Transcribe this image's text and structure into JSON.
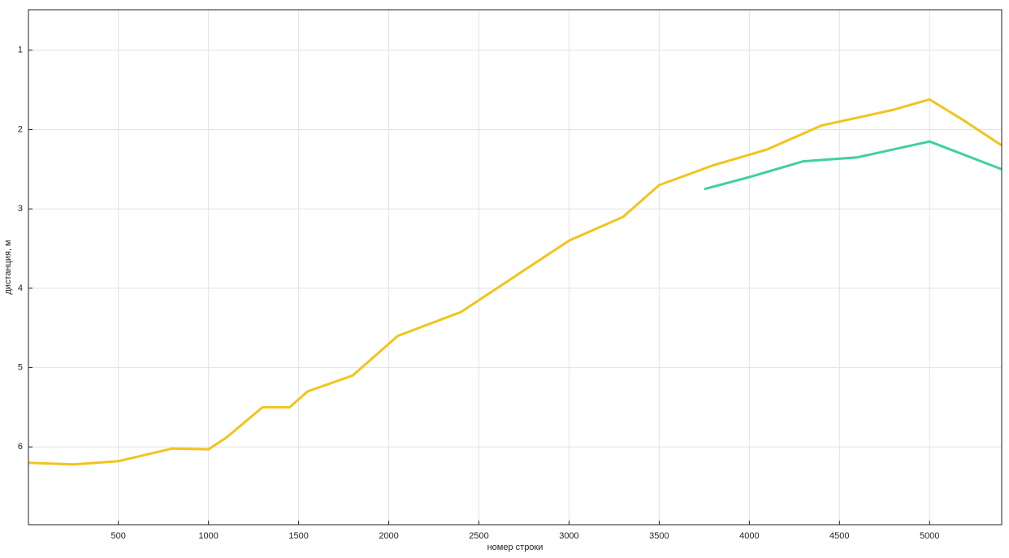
{
  "chart_data": {
    "type": "line",
    "xlabel": "номер строки",
    "ylabel": "дистанция, м",
    "xlim": [
      1,
      5400
    ],
    "xticks": [
      500,
      1000,
      1500,
      2000,
      2500,
      3000,
      3500,
      4000,
      4500,
      5000
    ],
    "ylim": [
      0.49,
      6.98
    ],
    "yticks": [
      1,
      2,
      3,
      4,
      5,
      6
    ],
    "y_reversed": true,
    "grid": true,
    "series": [
      {
        "color": "#f2c41c",
        "x": [
          1,
          250,
          500,
          800,
          1000,
          1100,
          1300,
          1450,
          1550,
          1800,
          2050,
          2400,
          2700,
          3000,
          3300,
          3500,
          3800,
          4100,
          4400,
          4800,
          5000,
          5200,
          5400
        ],
        "values": [
          6.2,
          6.22,
          6.18,
          6.02,
          6.03,
          5.88,
          5.5,
          5.5,
          5.3,
          5.1,
          4.6,
          4.3,
          3.85,
          3.4,
          3.1,
          2.7,
          2.45,
          2.25,
          1.95,
          1.75,
          1.62,
          1.9,
          2.2
        ]
      },
      {
        "color": "#3fd19a",
        "x": [
          3750,
          4000,
          4300,
          4600,
          5000,
          5400
        ],
        "values": [
          2.75,
          2.6,
          2.4,
          2.35,
          2.15,
          2.5
        ]
      }
    ]
  }
}
